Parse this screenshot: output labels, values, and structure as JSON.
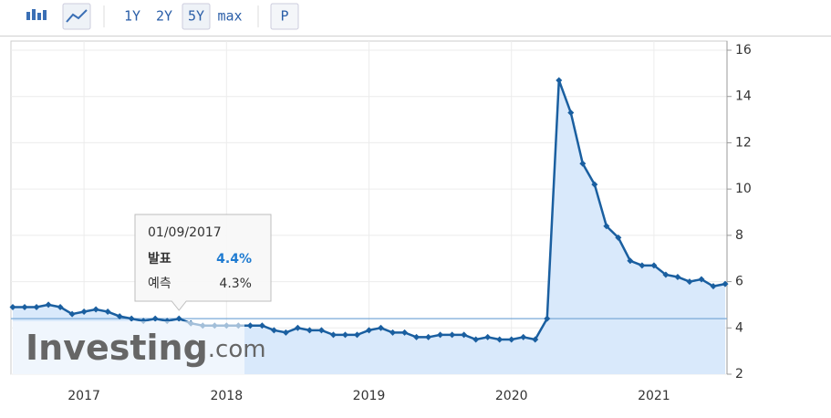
{
  "toolbar": {
    "buttons": [
      "1Y",
      "2Y",
      "5Y",
      "max",
      "P"
    ]
  },
  "chart_data": {
    "type": "line",
    "x": [
      "01/07/2016",
      "01/08/2016",
      "01/09/2016",
      "01/10/2016",
      "01/11/2016",
      "01/12/2016",
      "01/01/2017",
      "01/02/2017",
      "01/03/2017",
      "01/04/2017",
      "01/05/2017",
      "01/06/2017",
      "01/07/2017",
      "01/08/2017",
      "01/09/2017",
      "01/10/2017",
      "01/11/2017",
      "01/12/2017",
      "01/01/2018",
      "01/02/2018",
      "01/03/2018",
      "01/04/2018",
      "01/05/2018",
      "01/06/2018",
      "01/07/2018",
      "01/08/2018",
      "01/09/2018",
      "01/10/2018",
      "01/11/2018",
      "01/12/2018",
      "01/01/2019",
      "01/02/2019",
      "01/03/2019",
      "01/04/2019",
      "01/05/2019",
      "01/06/2019",
      "01/07/2019",
      "01/08/2019",
      "01/09/2019",
      "01/10/2019",
      "01/11/2019",
      "01/12/2019",
      "01/01/2020",
      "01/02/2020",
      "01/03/2020",
      "01/04/2020",
      "01/05/2020",
      "01/06/2020",
      "01/07/2020",
      "01/08/2020",
      "01/09/2020",
      "01/10/2020",
      "01/11/2020",
      "01/12/2020",
      "01/01/2021",
      "01/02/2021",
      "01/03/2021",
      "01/04/2021",
      "01/05/2021",
      "01/06/2021",
      "01/07/2021"
    ],
    "series": [
      {
        "color": "#1a5fa0",
        "values": [
          4.9,
          4.9,
          4.9,
          5.0,
          4.9,
          4.6,
          4.7,
          4.8,
          4.7,
          4.5,
          4.4,
          4.3,
          4.4,
          4.3,
          4.4,
          4.2,
          4.1,
          4.1,
          4.1,
          4.1,
          4.1,
          4.1,
          3.9,
          3.8,
          4.0,
          3.9,
          3.9,
          3.7,
          3.7,
          3.7,
          3.9,
          4.0,
          3.8,
          3.8,
          3.6,
          3.6,
          3.7,
          3.7,
          3.7,
          3.5,
          3.6,
          3.5,
          3.5,
          3.6,
          3.5,
          4.4,
          14.7,
          13.3,
          11.1,
          10.2,
          8.4,
          7.9,
          6.9,
          6.7,
          6.7,
          6.3,
          6.2,
          6.0,
          6.1,
          5.8,
          5.9
        ]
      }
    ],
    "xlim": [
      "01/07/2016",
      "01/07/2021"
    ],
    "xticks": [
      {
        "value": "01/01/2017",
        "label": "2017"
      },
      {
        "value": "01/01/2018",
        "label": "2018"
      },
      {
        "value": "01/01/2019",
        "label": "2019"
      },
      {
        "value": "01/01/2020",
        "label": "2020"
      },
      {
        "value": "01/01/2021",
        "label": "2021"
      }
    ],
    "ylim": [
      2,
      16
    ],
    "yticks": [
      2,
      4,
      6,
      8,
      10,
      12,
      14,
      16
    ],
    "grid": true,
    "fill": "#d9e9fb",
    "tooltip": {
      "date": "01/09/2017",
      "items": [
        {
          "label": "발표",
          "value": 4.4,
          "value_label": "4.4%"
        },
        {
          "label": "예측",
          "value": 4.3,
          "value_label": "4.3%"
        }
      ]
    },
    "watermark": {
      "brand": "Investing",
      "suffix": ".com"
    }
  }
}
